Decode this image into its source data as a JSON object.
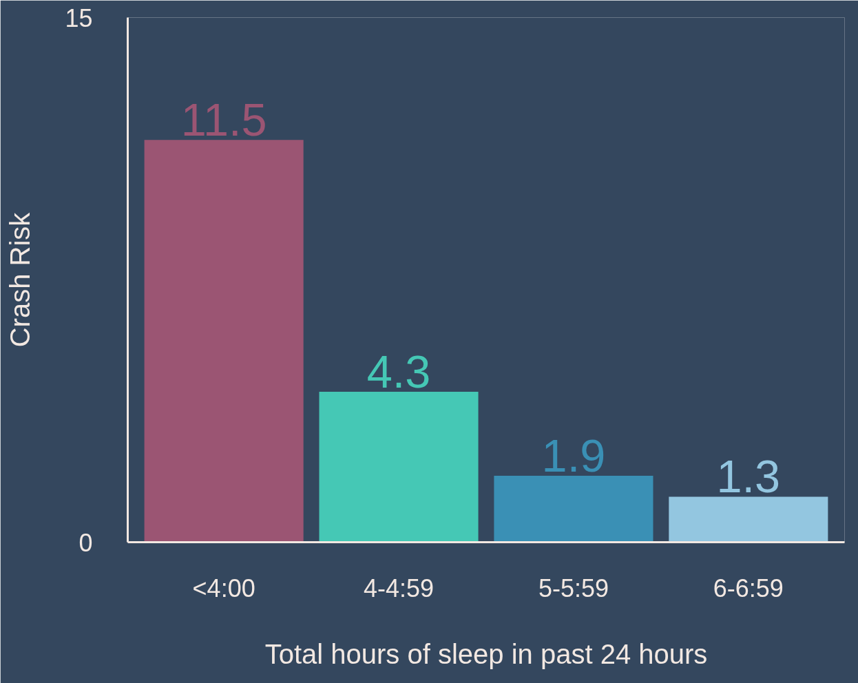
{
  "chart_data": {
    "type": "bar",
    "xlabel": "Total hours of sleep in past 24 hours",
    "ylabel": "Crash Risk",
    "categories": [
      "<4:00",
      "4-4:59",
      "5-5:59",
      "6-6:59"
    ],
    "values": [
      11.5,
      4.3,
      1.9,
      1.3
    ],
    "colors": [
      "#9b5573",
      "#45c8b5",
      "#3a90b5",
      "#93c6e0"
    ],
    "ylim": [
      0,
      15
    ],
    "yticks": [
      0,
      15
    ],
    "grid": false,
    "data_labels": true
  }
}
